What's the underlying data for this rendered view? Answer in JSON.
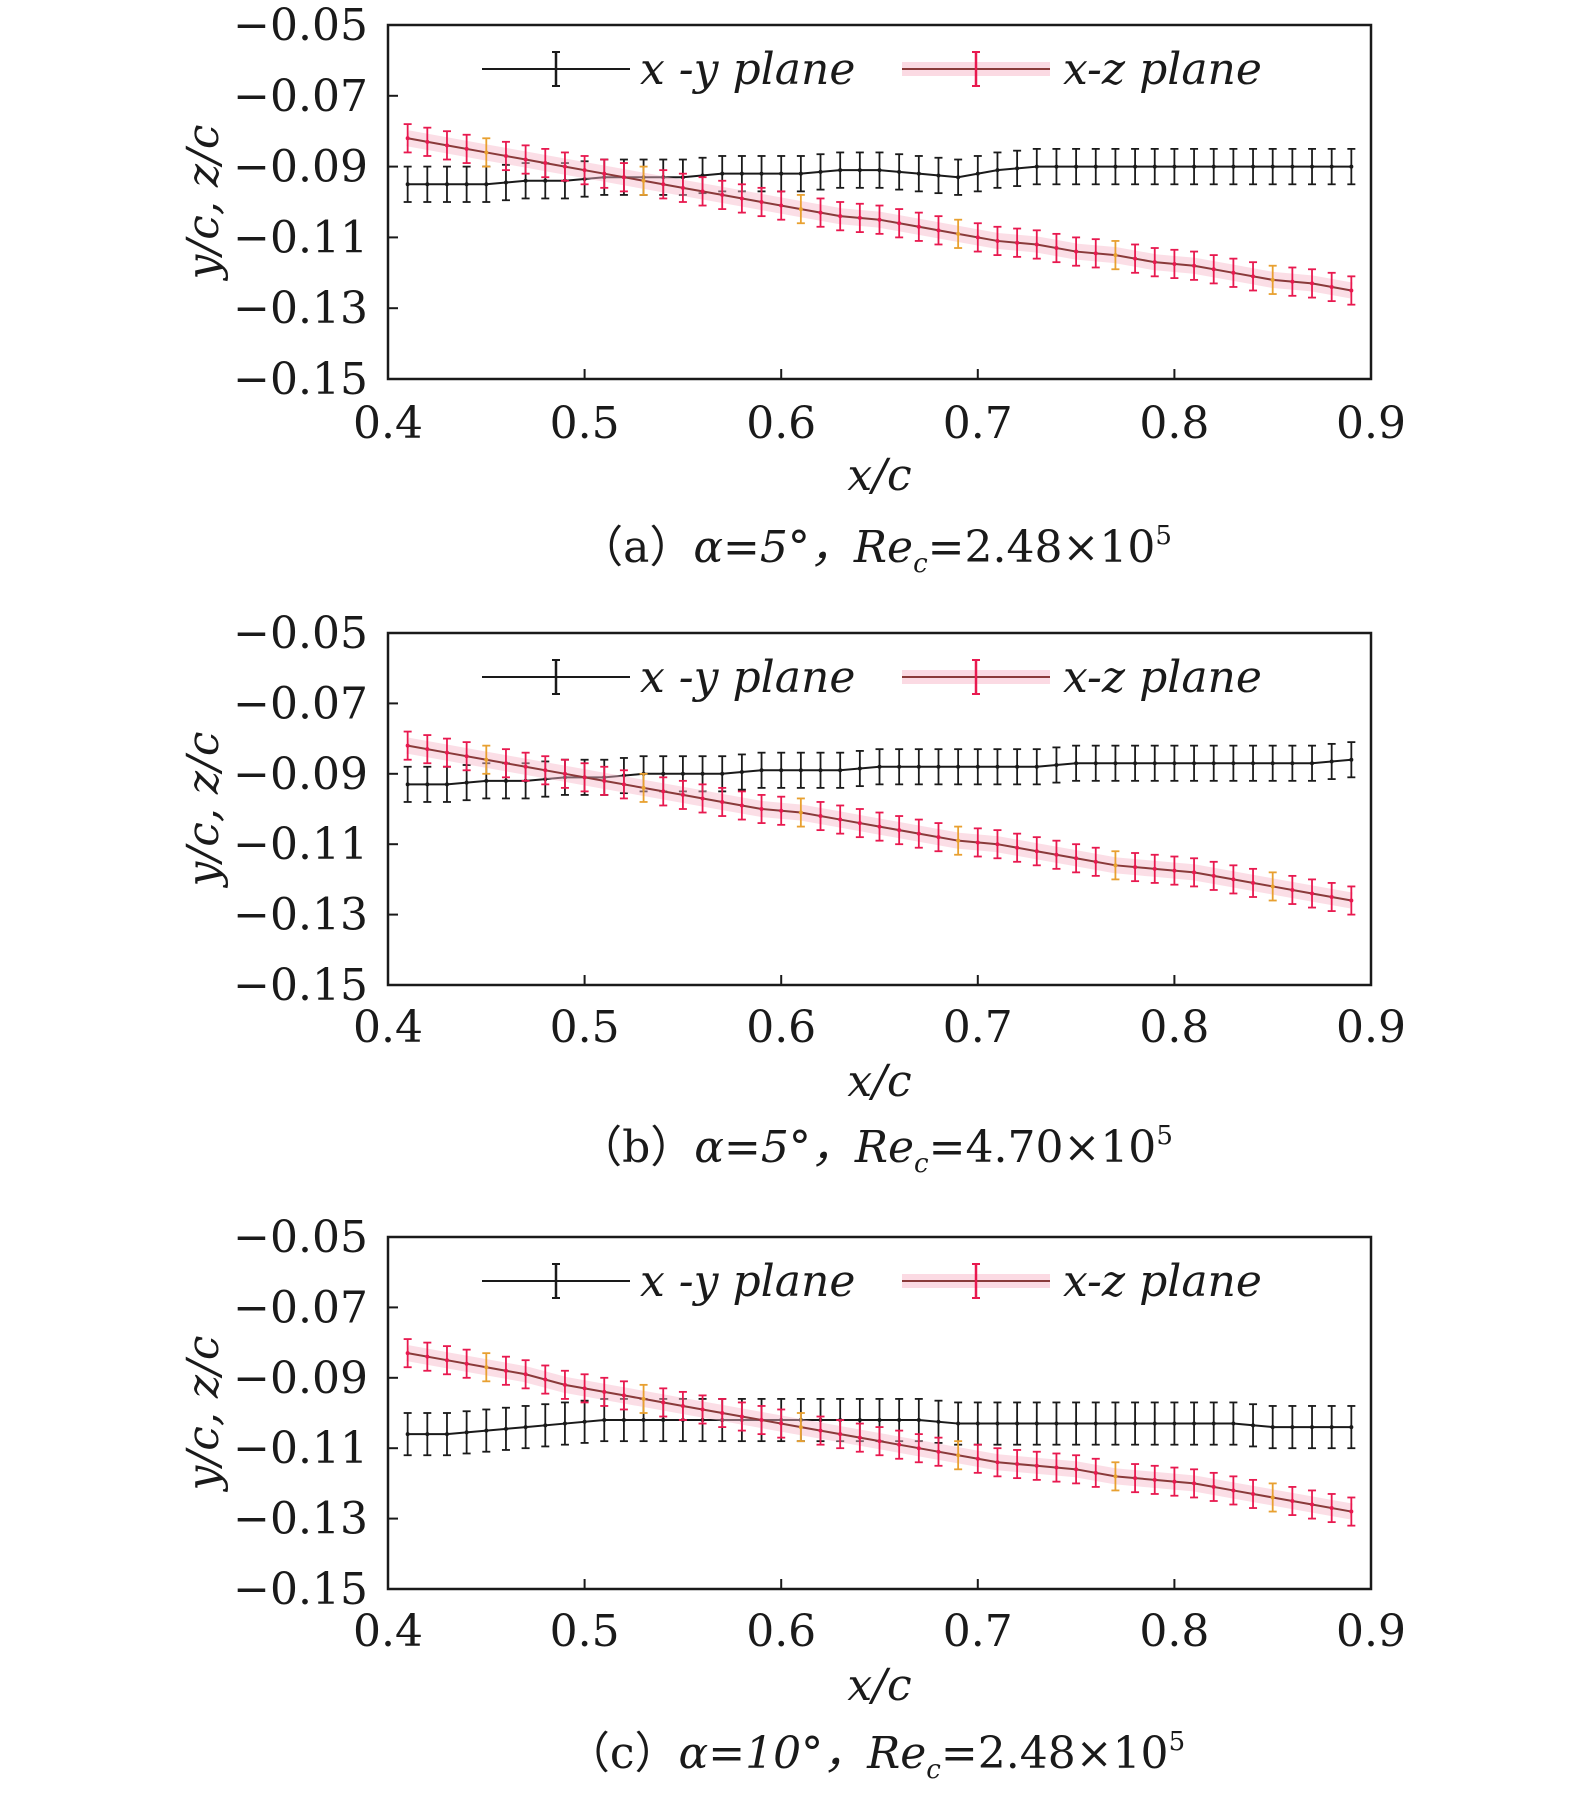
{
  "chart_data": [
    {
      "type": "line",
      "id": "a",
      "caption": {
        "label": "（a）",
        "alpha": "α=5°，",
        "re": "Re",
        "re_sub": "c",
        "re_value": "=2.48×10",
        "re_exp": "5"
      },
      "xlabel": "x/c",
      "ylabel": "y/c, z/c",
      "xlim": [
        0.4,
        0.9
      ],
      "ylim": [
        -0.15,
        -0.05
      ],
      "xticks": [
        "0.4",
        "0.5",
        "0.6",
        "0.7",
        "0.8",
        "0.9"
      ],
      "yticks": [
        "−0.05",
        "−0.07",
        "−0.09",
        "−0.11",
        "−0.13",
        "−0.15"
      ],
      "legend": {
        "placement": "top",
        "entries": [
          "x -y plane",
          "x-z plane"
        ]
      },
      "x": [
        0.41,
        0.43,
        0.45,
        0.47,
        0.49,
        0.51,
        0.53,
        0.55,
        0.57,
        0.59,
        0.61,
        0.63,
        0.65,
        0.67,
        0.69,
        0.71,
        0.73,
        0.75,
        0.77,
        0.79,
        0.81,
        0.83,
        0.85,
        0.87,
        0.89
      ],
      "series": [
        {
          "name": "x-y plane",
          "color": "#1a1a1a",
          "error": 0.005,
          "values": [
            -0.095,
            -0.095,
            -0.095,
            -0.094,
            -0.094,
            -0.093,
            -0.093,
            -0.093,
            -0.092,
            -0.092,
            -0.092,
            -0.091,
            -0.091,
            -0.092,
            -0.093,
            -0.091,
            -0.09,
            -0.09,
            -0.09,
            -0.09,
            -0.09,
            -0.09,
            -0.09,
            -0.09,
            -0.09
          ]
        },
        {
          "name": "x-z plane",
          "color": "#e8194f",
          "error": 0.004,
          "values": [
            -0.082,
            -0.084,
            -0.086,
            -0.088,
            -0.09,
            -0.092,
            -0.094,
            -0.096,
            -0.098,
            -0.1,
            -0.102,
            -0.104,
            -0.105,
            -0.107,
            -0.109,
            -0.111,
            -0.112,
            -0.114,
            -0.115,
            -0.117,
            -0.118,
            -0.12,
            -0.122,
            -0.123,
            -0.125
          ]
        }
      ]
    },
    {
      "type": "line",
      "id": "b",
      "caption": {
        "label": "（b）",
        "alpha": "α=5°，",
        "re": "Re",
        "re_sub": "c",
        "re_value": "=4.70×10",
        "re_exp": "5"
      },
      "xlabel": "x/c",
      "ylabel": "y/c, z/c",
      "xlim": [
        0.4,
        0.9
      ],
      "ylim": [
        -0.15,
        -0.05
      ],
      "xticks": [
        "0.4",
        "0.5",
        "0.6",
        "0.7",
        "0.8",
        "0.9"
      ],
      "yticks": [
        "−0.05",
        "−0.07",
        "−0.09",
        "−0.11",
        "−0.13",
        "−0.15"
      ],
      "legend": {
        "placement": "top",
        "entries": [
          "x -y plane",
          "x-z plane"
        ]
      },
      "x": [
        0.41,
        0.43,
        0.45,
        0.47,
        0.49,
        0.51,
        0.53,
        0.55,
        0.57,
        0.59,
        0.61,
        0.63,
        0.65,
        0.67,
        0.69,
        0.71,
        0.73,
        0.75,
        0.77,
        0.79,
        0.81,
        0.83,
        0.85,
        0.87,
        0.89
      ],
      "series": [
        {
          "name": "x-y plane",
          "color": "#1a1a1a",
          "error": 0.005,
          "values": [
            -0.093,
            -0.093,
            -0.092,
            -0.092,
            -0.091,
            -0.091,
            -0.09,
            -0.09,
            -0.09,
            -0.089,
            -0.089,
            -0.089,
            -0.088,
            -0.088,
            -0.088,
            -0.088,
            -0.088,
            -0.087,
            -0.087,
            -0.087,
            -0.087,
            -0.087,
            -0.087,
            -0.087,
            -0.086
          ]
        },
        {
          "name": "x-z plane",
          "color": "#e8194f",
          "error": 0.004,
          "values": [
            -0.082,
            -0.084,
            -0.086,
            -0.088,
            -0.09,
            -0.092,
            -0.094,
            -0.096,
            -0.098,
            -0.1,
            -0.101,
            -0.103,
            -0.105,
            -0.107,
            -0.109,
            -0.11,
            -0.112,
            -0.114,
            -0.116,
            -0.117,
            -0.118,
            -0.12,
            -0.122,
            -0.124,
            -0.126
          ]
        }
      ]
    },
    {
      "type": "line",
      "id": "c",
      "caption": {
        "label": "（c）",
        "alpha": "α=10°，",
        "re": "Re",
        "re_sub": "c",
        "re_value": "=2.48×10",
        "re_exp": "5"
      },
      "xlabel": "x/c",
      "ylabel": "y/c, z/c",
      "xlim": [
        0.4,
        0.9
      ],
      "ylim": [
        -0.15,
        -0.05
      ],
      "xticks": [
        "0.4",
        "0.5",
        "0.6",
        "0.7",
        "0.8",
        "0.9"
      ],
      "yticks": [
        "−0.05",
        "−0.07",
        "−0.09",
        "−0.11",
        "−0.13",
        "−0.15"
      ],
      "legend": {
        "placement": "top",
        "entries": [
          "x -y plane",
          "x-z plane"
        ]
      },
      "x": [
        0.41,
        0.43,
        0.45,
        0.47,
        0.49,
        0.51,
        0.53,
        0.55,
        0.57,
        0.59,
        0.61,
        0.63,
        0.65,
        0.67,
        0.69,
        0.71,
        0.73,
        0.75,
        0.77,
        0.79,
        0.81,
        0.83,
        0.85,
        0.87,
        0.89
      ],
      "series": [
        {
          "name": "x-y plane",
          "color": "#1a1a1a",
          "error": 0.006,
          "values": [
            -0.106,
            -0.106,
            -0.105,
            -0.104,
            -0.103,
            -0.102,
            -0.102,
            -0.102,
            -0.102,
            -0.102,
            -0.102,
            -0.102,
            -0.102,
            -0.102,
            -0.103,
            -0.103,
            -0.103,
            -0.103,
            -0.103,
            -0.103,
            -0.103,
            -0.103,
            -0.104,
            -0.104,
            -0.104
          ]
        },
        {
          "name": "x-z plane",
          "color": "#e8194f",
          "error": 0.004,
          "values": [
            -0.083,
            -0.085,
            -0.087,
            -0.089,
            -0.092,
            -0.094,
            -0.096,
            -0.098,
            -0.1,
            -0.102,
            -0.104,
            -0.106,
            -0.108,
            -0.11,
            -0.112,
            -0.114,
            -0.115,
            -0.116,
            -0.118,
            -0.119,
            -0.12,
            -0.122,
            -0.124,
            -0.126,
            -0.128
          ]
        }
      ]
    }
  ]
}
